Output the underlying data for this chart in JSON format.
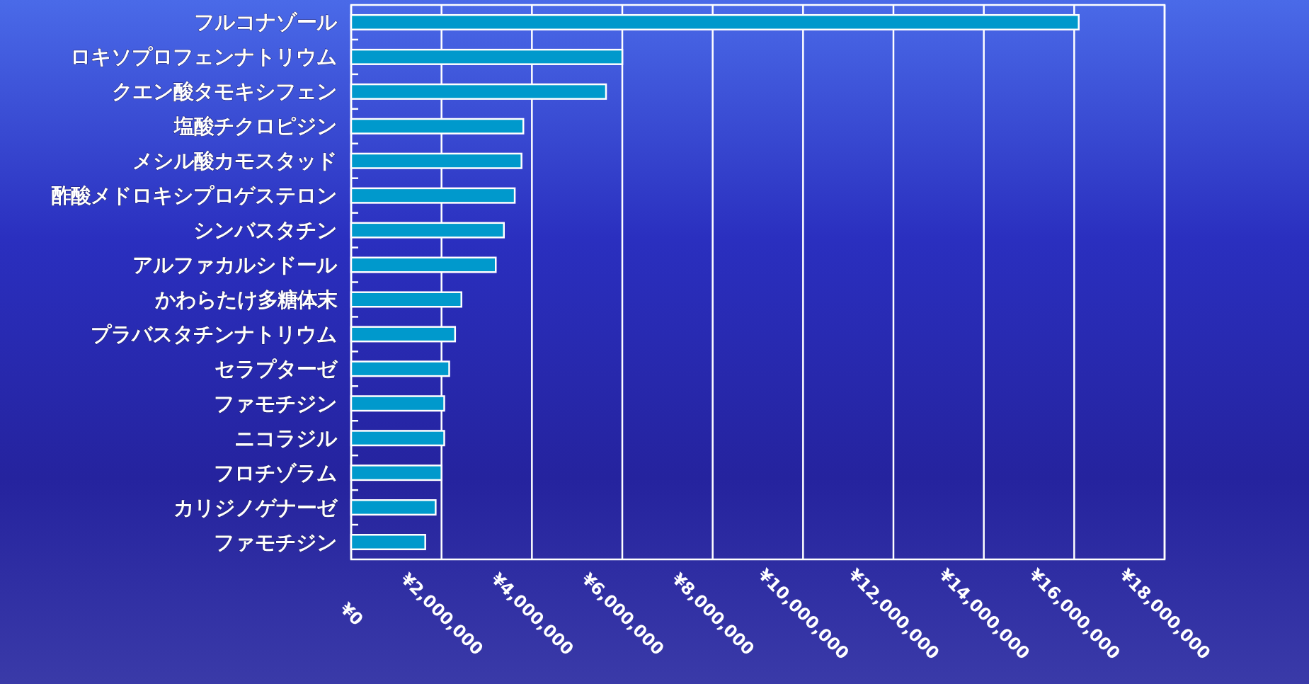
{
  "chart_data": {
    "type": "bar",
    "orientation": "horizontal",
    "color": "#0099cc",
    "grid": "x",
    "categories": [
      "フルコナゾール",
      "ロキソプロフェンナトリウム",
      "クエン酸タモキシフェン",
      "塩酸チクロピジン",
      "メシル酸カモスタッド",
      "酢酸メドロキシプロゲステロン",
      "シンバスタチン",
      "アルファカルシドール",
      "かわらたけ多糖体末",
      "プラバスタチンナトリウム",
      "セラプターゼ",
      "ファモチジン",
      "ニコラジル",
      "フロチゾラム",
      "カリジノゲナーゼ",
      "ファモチジン"
    ],
    "values": [
      16100000,
      6000000,
      5640000,
      3810000,
      3770000,
      3620000,
      3380000,
      3200000,
      2440000,
      2300000,
      2170000,
      2060000,
      2060000,
      2000000,
      1870000,
      1640000
    ],
    "xlim": [
      0,
      18000000
    ],
    "xticks": [
      {
        "value": 0,
        "label": "¥0"
      },
      {
        "value": 2000000,
        "label": "¥2,000,000"
      },
      {
        "value": 4000000,
        "label": "¥4,000,000"
      },
      {
        "value": 6000000,
        "label": "¥6,000,000"
      },
      {
        "value": 8000000,
        "label": "¥8,000,000"
      },
      {
        "value": 10000000,
        "label": "¥10,000,000"
      },
      {
        "value": 12000000,
        "label": "¥12,000,000"
      },
      {
        "value": 14000000,
        "label": "¥14,000,000"
      },
      {
        "value": 16000000,
        "label": "¥16,000,000"
      },
      {
        "value": 18000000,
        "label": "¥18,000,000"
      }
    ]
  }
}
